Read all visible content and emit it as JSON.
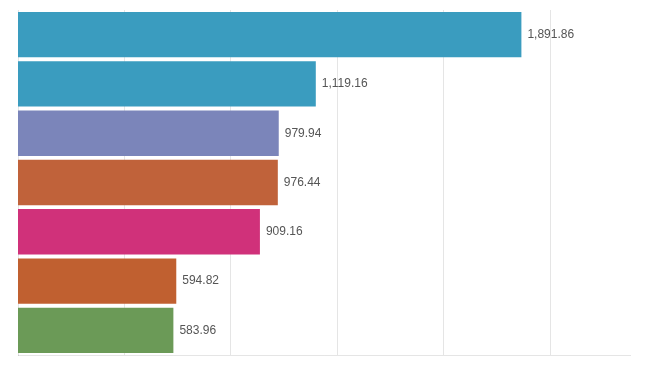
{
  "chart_data": {
    "type": "bar",
    "orientation": "horizontal",
    "categories": [
      null,
      null,
      null,
      null,
      null,
      null,
      null
    ],
    "values": [
      1891.86,
      1119.16,
      979.94,
      976.44,
      909.16,
      594.82,
      583.96
    ],
    "value_labels": [
      "1,891.86",
      "1,119.16",
      "979.94",
      "976.44",
      "909.16",
      "594.82",
      "583.96"
    ],
    "colors": [
      "#3a9cbf",
      "#3a9cbf",
      "#7b85ba",
      "#c0623a",
      "#d0317a",
      "#c06030",
      "#6b9a57"
    ],
    "xlim": [
      0,
      2300
    ],
    "xticks": [
      400,
      800,
      1200,
      1600,
      2000
    ],
    "grid": true,
    "data_labels": true,
    "tick_labels": false
  }
}
